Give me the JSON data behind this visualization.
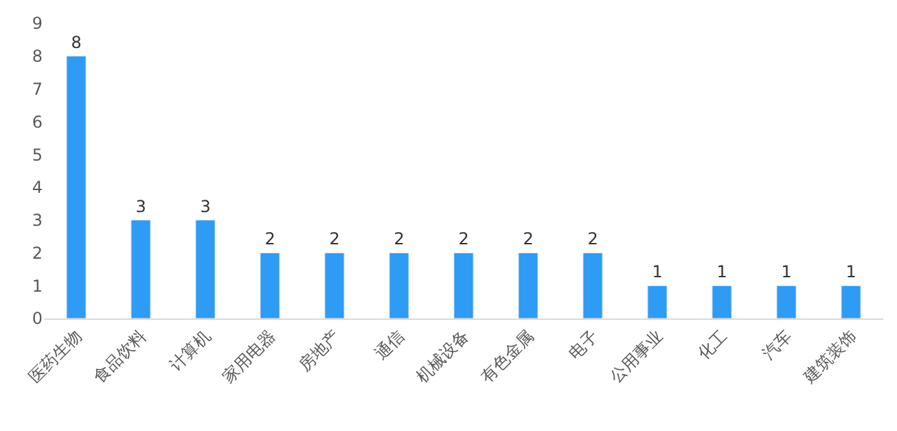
{
  "chart_data": {
    "type": "bar",
    "categories": [
      "医药生物",
      "食品饮料",
      "计算机",
      "家用电器",
      "房地产",
      "通信",
      "机械设备",
      "有色金属",
      "电子",
      "公用事业",
      "化工",
      "汽车",
      "建筑装饰"
    ],
    "values": [
      8,
      3,
      3,
      2,
      2,
      2,
      2,
      2,
      2,
      1,
      1,
      1,
      1
    ],
    "color": "#2e9bf5",
    "ylim": [
      0,
      9
    ],
    "yticks": [
      0,
      1,
      2,
      3,
      4,
      5,
      6,
      7,
      8,
      9
    ],
    "data_labels": true,
    "legend": false
  }
}
